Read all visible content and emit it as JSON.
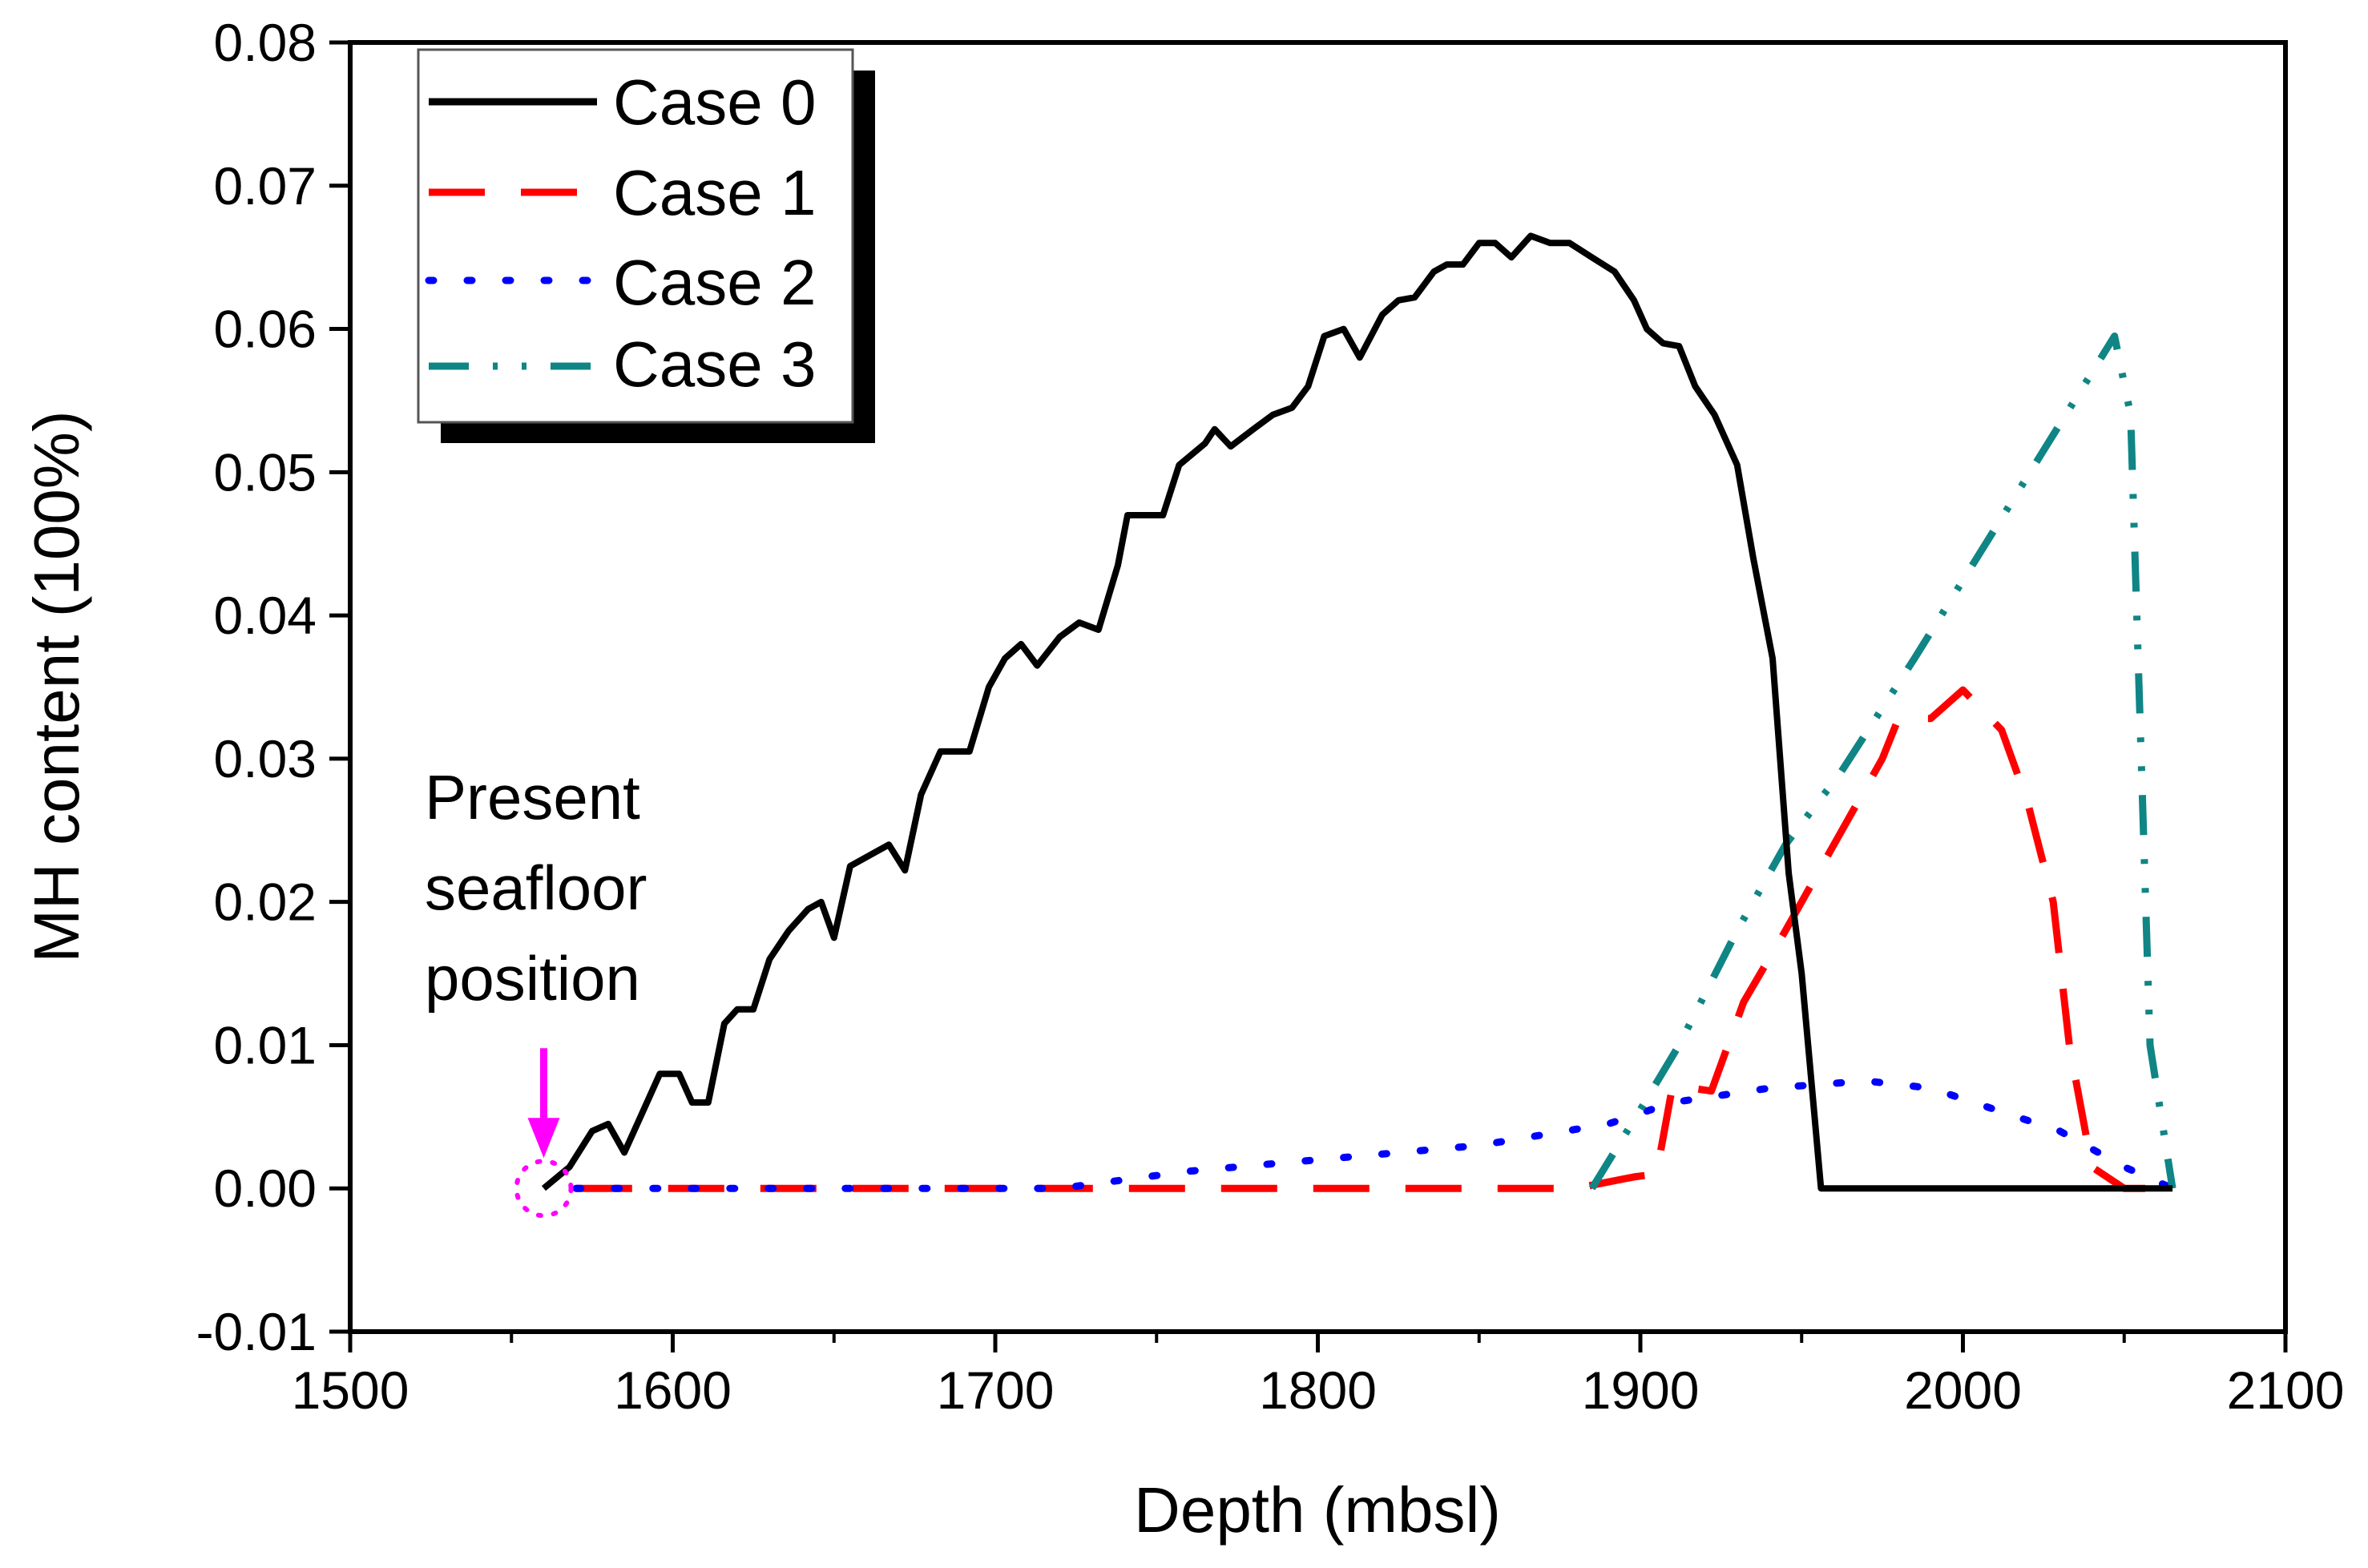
{
  "chart_data": {
    "type": "line",
    "title": "",
    "xlabel": "Depth (mbsl)",
    "ylabel": "MH content (100%)",
    "xlim": [
      1500,
      2100
    ],
    "ylim": [
      -0.01,
      0.08
    ],
    "xticks": [
      1500,
      1600,
      1700,
      1800,
      1900,
      2000,
      2100
    ],
    "xtick_labels": [
      "1500",
      "1600",
      "1700",
      "1800",
      "1900",
      "2000",
      "2100"
    ],
    "yticks": [
      -0.01,
      0,
      0.01,
      0.02,
      0.03,
      0.04,
      0.05,
      0.06,
      0.07,
      0.08
    ],
    "ytick_labels": [
      "-0.01",
      "0.00",
      "0.01",
      "0.02",
      "0.03",
      "0.04",
      "0.05",
      "0.06",
      "0.07",
      "0.08"
    ],
    "grid": false,
    "legend_position": "top-left",
    "annotation": {
      "lines": [
        "Present",
        "seafloor",
        "position"
      ],
      "depth": 1560,
      "value": 0,
      "color": "#ff00ff"
    },
    "series": [
      {
        "name": "Case 0",
        "color": "#000000",
        "style": "solid",
        "x": [
          1560,
          1568,
          1575,
          1580,
          1585,
          1590,
          1596,
          1602,
          1606,
          1611,
          1616,
          1620,
          1625,
          1630,
          1636,
          1642,
          1646,
          1650,
          1655,
          1663,
          1667,
          1672,
          1677,
          1683,
          1692,
          1698,
          1703,
          1708,
          1713,
          1720,
          1726,
          1732,
          1738,
          1741,
          1752,
          1757,
          1765,
          1768,
          1773,
          1780,
          1786,
          1792,
          1797,
          1802,
          1808,
          1813,
          1820,
          1825,
          1830,
          1836,
          1840,
          1845,
          1850,
          1855,
          1860,
          1866,
          1872,
          1878,
          1885,
          1892,
          1898,
          1902,
          1907,
          1912,
          1917,
          1923,
          1930,
          1935,
          1941,
          1946,
          1950,
          1954,
          1956,
          2065
        ],
        "y": [
          0,
          0.0015,
          0.004,
          0.0045,
          0.0025,
          0.005,
          0.008,
          0.008,
          0.006,
          0.006,
          0.0115,
          0.0125,
          0.0125,
          0.016,
          0.018,
          0.0195,
          0.02,
          0.0175,
          0.0225,
          0.0235,
          0.024,
          0.0222,
          0.0275,
          0.0305,
          0.0305,
          0.035,
          0.037,
          0.038,
          0.0365,
          0.0385,
          0.0395,
          0.039,
          0.0435,
          0.047,
          0.047,
          0.0505,
          0.052,
          0.053,
          0.0518,
          0.053,
          0.054,
          0.0545,
          0.056,
          0.0595,
          0.06,
          0.058,
          0.061,
          0.062,
          0.0622,
          0.064,
          0.0645,
          0.0645,
          0.066,
          0.066,
          0.065,
          0.0665,
          0.066,
          0.066,
          0.065,
          0.064,
          0.062,
          0.06,
          0.059,
          0.0588,
          0.056,
          0.054,
          0.0505,
          0.044,
          0.037,
          0.022,
          0.015,
          0.005,
          0,
          0
        ]
      },
      {
        "name": "Case 1",
        "color": "#ff0000",
        "style": "dash",
        "x": [
          1570,
          1880,
          1898,
          1905,
          1910,
          1922,
          1932,
          1945,
          1960,
          1975,
          1980,
          1990,
          2000,
          2012,
          2020,
          2028,
          2033,
          2040,
          2050,
          2065
        ],
        "y": [
          0,
          0,
          0.0008,
          0.001,
          0.0072,
          0.0068,
          0.013,
          0.018,
          0.024,
          0.03,
          0.0328,
          0.0328,
          0.0348,
          0.032,
          0.027,
          0.02,
          0.01,
          0.0015,
          0,
          0
        ]
      },
      {
        "name": "Case 2",
        "color": "#0000ff",
        "style": "dot",
        "x": [
          1570,
          1720,
          1760,
          1800,
          1850,
          1890,
          1910,
          1940,
          1970,
          1990,
          2010,
          2030,
          2050,
          2065
        ],
        "y": [
          0,
          0,
          0.0012,
          0.002,
          0.003,
          0.0045,
          0.006,
          0.007,
          0.0075,
          0.007,
          0.0055,
          0.004,
          0.0015,
          0
        ]
      },
      {
        "name": "Case 3",
        "color": "#108585",
        "style": "dashdotdot",
        "x": [
          1885,
          1900,
          1912,
          1930,
          1945,
          1962,
          1985,
          2047,
          2052,
          2058,
          2065
        ],
        "y": [
          0,
          0.0055,
          0.01,
          0.018,
          0.024,
          0.029,
          0.037,
          0.0595,
          0.054,
          0.01,
          0
        ]
      }
    ]
  }
}
